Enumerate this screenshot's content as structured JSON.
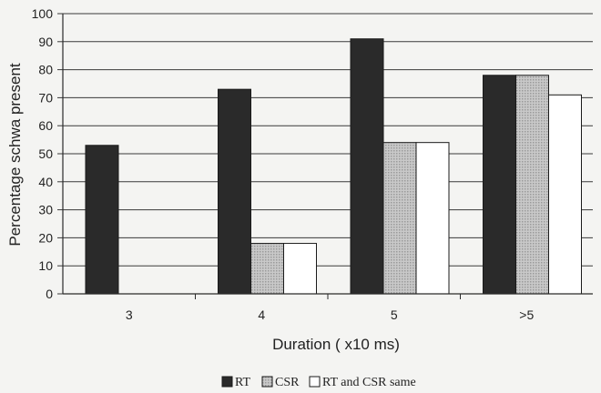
{
  "chart_data": {
    "type": "bar",
    "title": "",
    "xlabel": "Duration ( x10 ms)",
    "ylabel": "Percentage schwa present",
    "categories": [
      "3",
      "4",
      "5",
      ">5"
    ],
    "ylim": [
      0,
      100
    ],
    "yticks": [
      0,
      10,
      20,
      30,
      40,
      50,
      60,
      70,
      80,
      90,
      100
    ],
    "grid": true,
    "legend_position": "bottom",
    "series": [
      {
        "name": "RT",
        "color": "#2a2a2a",
        "values": [
          53,
          73,
          91,
          78
        ]
      },
      {
        "name": "CSR",
        "color": "#b8b8b8",
        "pattern": "dotted-gray",
        "values": [
          0,
          18,
          54,
          78
        ]
      },
      {
        "name": "RT and CSR same",
        "color": "#ffffff",
        "values": [
          0,
          18,
          54,
          71
        ]
      }
    ]
  }
}
